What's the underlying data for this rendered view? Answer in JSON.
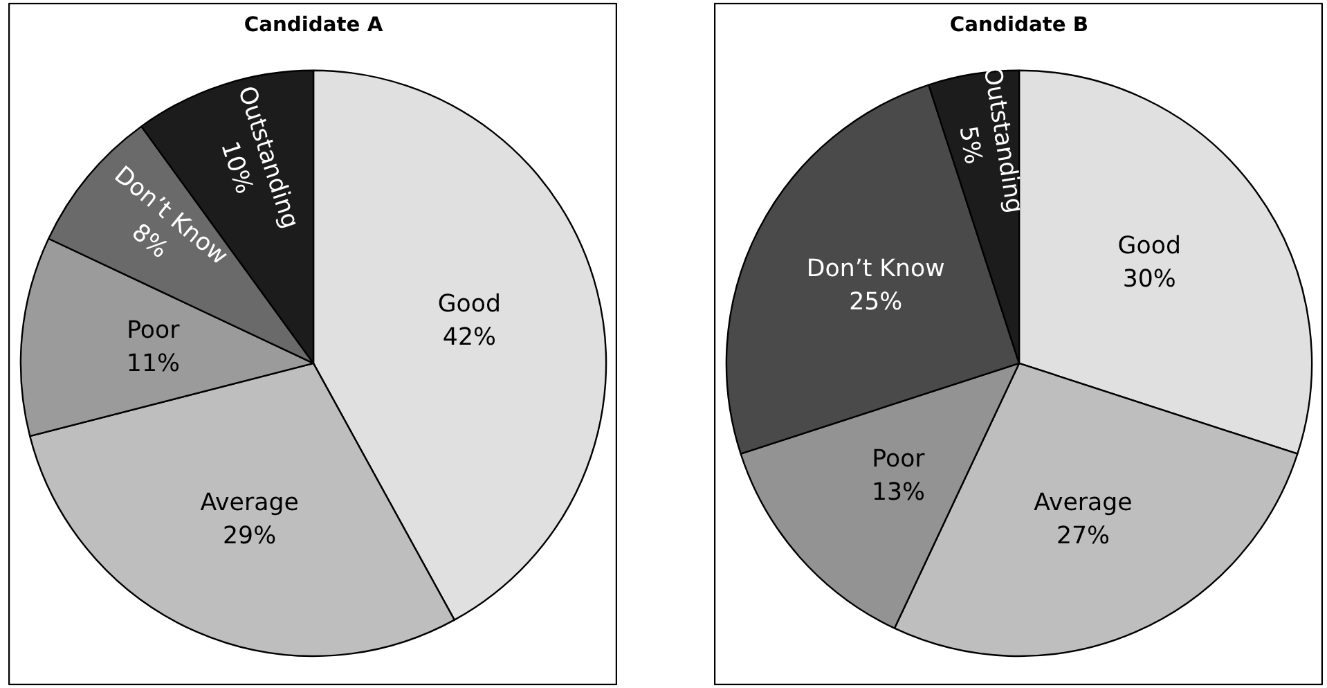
{
  "chart_data": [
    {
      "type": "pie",
      "title": "Candidate A",
      "categories": [
        "Good",
        "Average",
        "Poor",
        "Don’t Know",
        "Outstanding"
      ],
      "values": [
        42,
        29,
        11,
        8,
        10
      ],
      "value_labels": [
        "42%",
        "29%",
        "11%",
        "8%",
        "10%"
      ],
      "colors": [
        "#e0e0e0",
        "#bebebe",
        "#9b9b9b",
        "#6a6a6a",
        "#1c1c1c"
      ]
    },
    {
      "type": "pie",
      "title": "Candidate B",
      "categories": [
        "Good",
        "Average",
        "Poor",
        "Don’t Know",
        "Outstanding"
      ],
      "values": [
        30,
        27,
        13,
        25,
        5
      ],
      "value_labels": [
        "30%",
        "27%",
        "13%",
        "25%",
        "5%"
      ],
      "colors": [
        "#e0e0e0",
        "#bebebe",
        "#939393",
        "#4a4a4a",
        "#1c1c1c"
      ]
    }
  ]
}
